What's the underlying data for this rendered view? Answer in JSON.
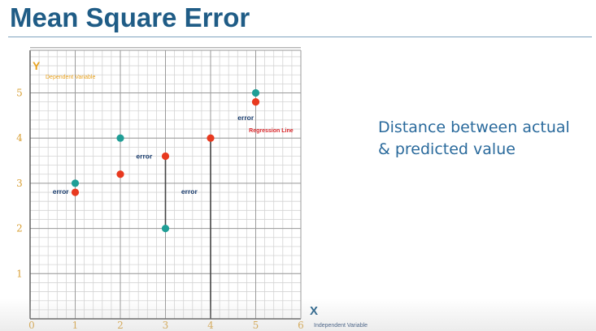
{
  "slide": {
    "title": "Mean Square Error",
    "note_lines": [
      "Distance between actual",
      "& predicted value"
    ]
  },
  "colors": {
    "title": "#1f5c86",
    "actual_point": "#1f9e96",
    "predicted_point": "#e8391f",
    "axis_label": "#e8a21f",
    "error_label": "#1a3d6e",
    "regression_label": "#d9262a",
    "grid_minor": "#d4d4d4",
    "grid_major": "#9a9a9a",
    "tick": "#d9a036",
    "x_axis_letter": "#1f5c86"
  },
  "chart_data": {
    "type": "scatter",
    "title": "",
    "xlabel": "Independent Variable",
    "ylabel": "Dependent Variable",
    "x_axis_letter": "X",
    "y_axis_letter": "Y",
    "xlim": [
      0,
      6
    ],
    "ylim": [
      0,
      6.2
    ],
    "x_ticks": [
      0,
      1,
      2,
      3,
      4,
      5,
      6
    ],
    "y_ticks": [
      1,
      2,
      3,
      4,
      5
    ],
    "grid": true,
    "series": [
      {
        "role": "actual",
        "points": [
          [
            1,
            3.0
          ],
          [
            2,
            4.0
          ],
          [
            3,
            2.0
          ],
          [
            5,
            5.0
          ]
        ]
      },
      {
        "role": "predicted",
        "points": [
          [
            1,
            2.8
          ],
          [
            2,
            3.2
          ],
          [
            3,
            3.6
          ],
          [
            4,
            4.0
          ],
          [
            5,
            4.8
          ]
        ]
      }
    ],
    "error_segments": [
      [
        3,
        2.0,
        3.6
      ],
      [
        4,
        0,
        4.0
      ]
    ],
    "annotations": [
      {
        "text": "error",
        "x": 0.5,
        "y": 2.82,
        "kind": "error"
      },
      {
        "text": "error",
        "x": 2.35,
        "y": 3.6,
        "kind": "error"
      },
      {
        "text": "error",
        "x": 3.35,
        "y": 2.82,
        "kind": "error"
      },
      {
        "text": "error",
        "x": 4.6,
        "y": 4.45,
        "kind": "error"
      },
      {
        "text": "Regression Line",
        "x": 4.85,
        "y": 4.18,
        "kind": "regression"
      }
    ]
  }
}
